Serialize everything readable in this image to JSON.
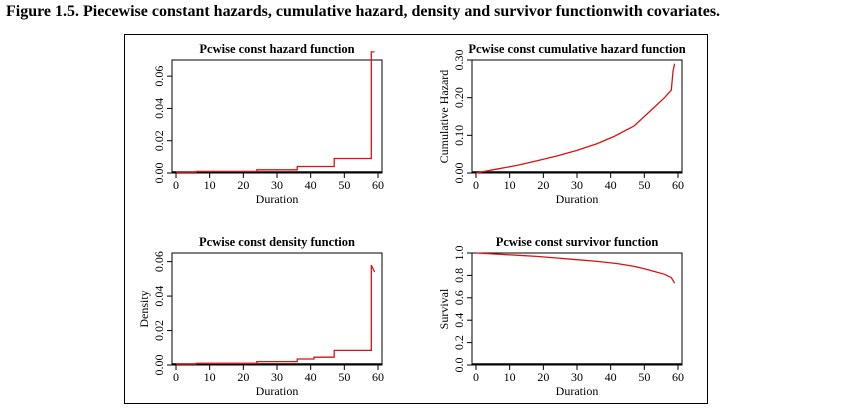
{
  "figure_caption": "Figure 1.5. Piecewise constant hazards, cumulative hazard, density and survivor functionwith covariates.",
  "chart_data": [
    {
      "type": "line",
      "title": "Pcwise const hazard function",
      "xlabel": "Duration",
      "ylabel": "",
      "xlim": [
        0,
        60
      ],
      "ylim": [
        0,
        0.07
      ],
      "xticks": [
        "0",
        "10",
        "20",
        "30",
        "40",
        "50",
        "60"
      ],
      "yticks": [
        "0.00",
        "0.02",
        "0.04",
        "0.06"
      ],
      "step": true,
      "color": "#dd1111",
      "x": [
        0,
        6,
        6,
        24,
        24,
        36,
        36,
        47,
        47,
        58,
        58,
        59
      ],
      "y": [
        0.0005,
        0.0005,
        0.001,
        0.001,
        0.002,
        0.002,
        0.004,
        0.004,
        0.009,
        0.009,
        0.075,
        0.075
      ]
    },
    {
      "type": "line",
      "title": "Pcwise const cumulative hazard function",
      "xlabel": "Duration",
      "ylabel": "Cumulative Hazard",
      "xlim": [
        0,
        60
      ],
      "ylim": [
        0,
        0.3
      ],
      "xticks": [
        "0",
        "10",
        "20",
        "30",
        "40",
        "50",
        "60"
      ],
      "yticks": [
        "0.00",
        "0.10",
        "0.20",
        "0.30"
      ],
      "step": false,
      "color": "#dd1111",
      "x": [
        0,
        6,
        12,
        18,
        24,
        30,
        36,
        41,
        47,
        50,
        53,
        56,
        58,
        58.5,
        59
      ],
      "y": [
        0,
        0.01,
        0.02,
        0.032,
        0.045,
        0.06,
        0.078,
        0.097,
        0.125,
        0.15,
        0.175,
        0.2,
        0.22,
        0.27,
        0.29
      ]
    },
    {
      "type": "line",
      "title": "Pcwise const density function",
      "xlabel": "Duration",
      "ylabel": "Density",
      "xlim": [
        0,
        60
      ],
      "ylim": [
        0,
        0.065
      ],
      "xticks": [
        "0",
        "10",
        "20",
        "30",
        "40",
        "50",
        "60"
      ],
      "yticks": [
        "0.00",
        "0.02",
        "0.04",
        "0.06"
      ],
      "step": true,
      "color": "#dd1111",
      "x": [
        0,
        6,
        6,
        24,
        24,
        36,
        36,
        41,
        41,
        47,
        47,
        58,
        58,
        59
      ],
      "y": [
        0.0005,
        0.0005,
        0.001,
        0.001,
        0.002,
        0.002,
        0.0035,
        0.0035,
        0.0045,
        0.0045,
        0.0085,
        0.0085,
        0.058,
        0.054
      ]
    },
    {
      "type": "line",
      "title": "Pcwise const survivor function",
      "xlabel": "Duration",
      "ylabel": "Survival",
      "xlim": [
        0,
        60
      ],
      "ylim": [
        0,
        1.0
      ],
      "xticks": [
        "0",
        "10",
        "20",
        "30",
        "40",
        "50",
        "60"
      ],
      "yticks": [
        "0.0",
        "0.2",
        "0.4",
        "0.6",
        "0.8",
        "1.0"
      ],
      "step": false,
      "color": "#dd1111",
      "x": [
        0,
        6,
        12,
        18,
        24,
        30,
        36,
        42,
        47,
        50,
        53,
        56,
        58,
        59
      ],
      "y": [
        1.0,
        0.99,
        0.98,
        0.97,
        0.955,
        0.94,
        0.925,
        0.905,
        0.88,
        0.86,
        0.835,
        0.81,
        0.78,
        0.73
      ]
    }
  ]
}
